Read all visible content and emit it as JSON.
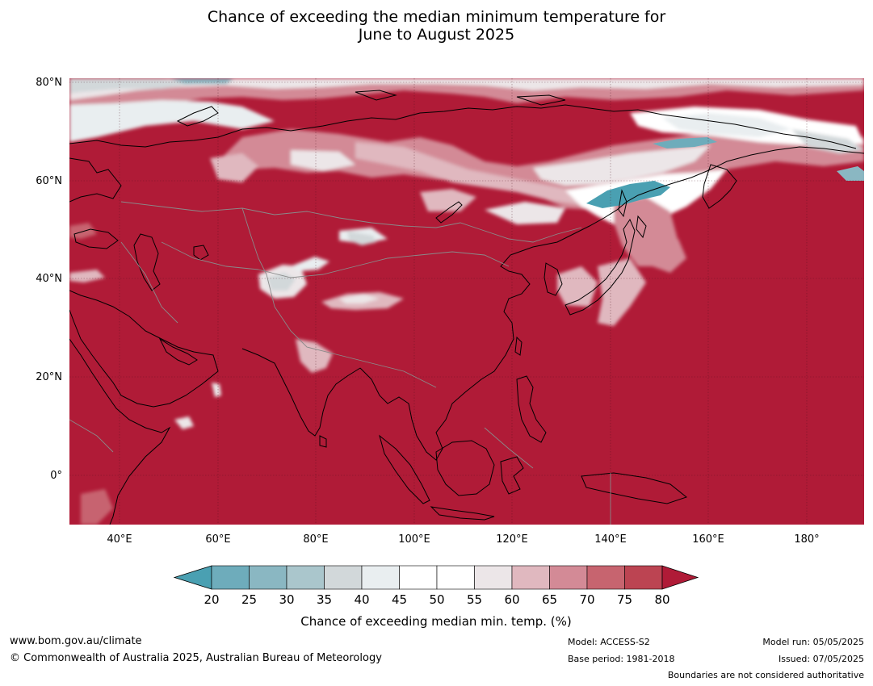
{
  "title": {
    "line1": "Chance of exceeding the median minimum temperature for",
    "line2": "June to August 2025"
  },
  "map": {
    "lat_labels": [
      "80°N",
      "60°N",
      "40°N",
      "20°N",
      "0°"
    ],
    "lon_labels": [
      "40°E",
      "60°E",
      "80°E",
      "100°E",
      "120°E",
      "140°E",
      "160°E",
      "180°"
    ],
    "dominant_color": "#b01b37"
  },
  "colorbar": {
    "ticks": [
      "20",
      "25",
      "30",
      "35",
      "40",
      "45",
      "50",
      "55",
      "60",
      "65",
      "70",
      "75",
      "80"
    ],
    "colors": [
      "#4aa0b2",
      "#6eacbb",
      "#8ab7c2",
      "#aac6cc",
      "#d2d8da",
      "#e9eef0",
      "#ffffff",
      "#ffffff",
      "#ece6e8",
      "#e0b8bf",
      "#d38a96",
      "#c7646f",
      "#bc4452",
      "#b01b37"
    ],
    "label": "Chance of exceeding median min. temp. (%)"
  },
  "footer": {
    "website": "www.bom.gov.au/climate",
    "copyright": "© Commonwealth of Australia 2025, Australian Bureau of Meteorology",
    "model": "Model: ACCESS-S2",
    "base_period": "Base period: 1981-2018",
    "model_run": "Model run: 05/05/2025",
    "issued": "Issued: 07/05/2025",
    "boundaries": "Boundaries are not considered authoritative"
  }
}
